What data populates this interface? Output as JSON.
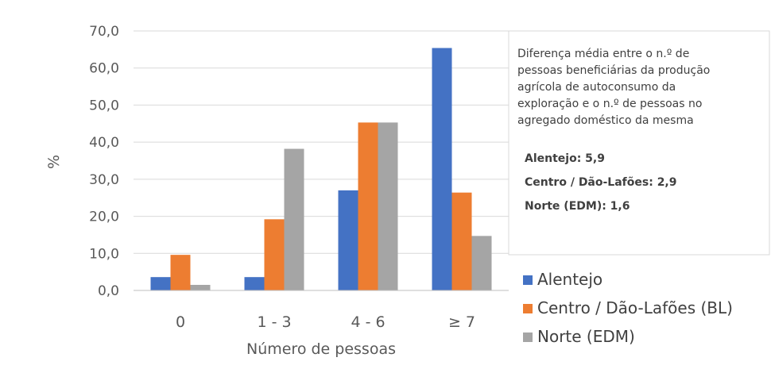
{
  "chart_data": {
    "type": "bar",
    "title": "",
    "xlabel": "Número de pessoas",
    "ylabel": "%",
    "categories": [
      "0",
      "1 - 3",
      "4 - 6",
      "≥ 7"
    ],
    "series": [
      {
        "name": "Alentejo",
        "color": "#4472C4",
        "values": [
          3.6,
          3.6,
          27.0,
          65.4
        ]
      },
      {
        "name": "Centro / Dão-Lafões (BL)",
        "color": "#ED7D31",
        "values": [
          9.6,
          19.2,
          45.3,
          26.4
        ]
      },
      {
        "name": "Norte (EDM)",
        "color": "#A5A5A5",
        "values": [
          1.5,
          38.2,
          45.3,
          14.7
        ]
      }
    ],
    "ylim": [
      0,
      70
    ],
    "y_ticks": [
      "0,0",
      "10,0",
      "20,0",
      "30,0",
      "40,0",
      "50,0",
      "60,0",
      "70,0"
    ],
    "grid": true,
    "legend_position": "right",
    "annotation": {
      "lines": [
        "Diferença média entre o n.º de",
        "pessoas beneficiárias da produção",
        "agrícola de autoconsumo da",
        "exploração e o n.º de pessoas no",
        "agregado doméstico da mesma"
      ],
      "stats": [
        "Alentejo: 5,9",
        "Centro / Dão-Lafões: 2,9",
        "Norte (EDM): 1,6"
      ]
    }
  }
}
